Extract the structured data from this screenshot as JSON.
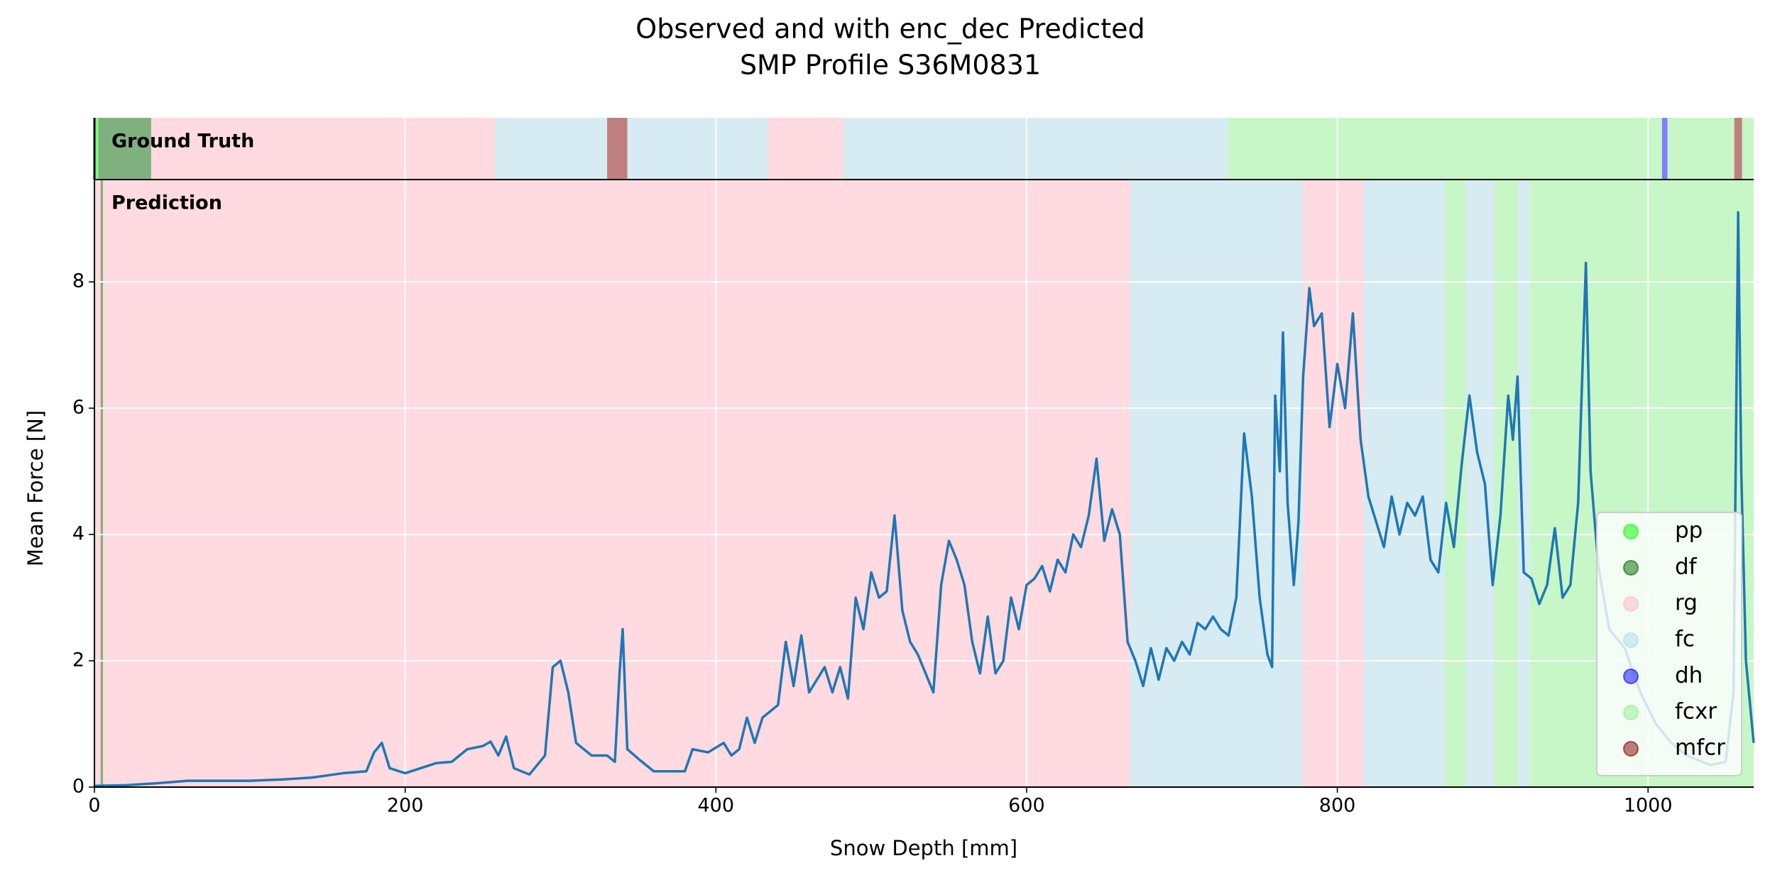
{
  "chart_data": {
    "type": "line",
    "title": "Observed and with enc_dec Predicted",
    "subtitle": "SMP Profile S36M0831",
    "xlabel": "Snow Depth [mm]",
    "ylabel": "Mean Force [N]",
    "xlim": [
      0,
      1068
    ],
    "ylim": [
      0,
      9.62
    ],
    "xticks": [
      0,
      200,
      400,
      600,
      800,
      1000
    ],
    "yticks": [
      0,
      2,
      4,
      6,
      8
    ],
    "grid": true,
    "legend": "lower right",
    "classes": [
      {
        "name": "pp",
        "color": "#00ff00"
      },
      {
        "name": "df",
        "color": "#006400"
      },
      {
        "name": "rg",
        "color": "#ffb6c1"
      },
      {
        "name": "fc",
        "color": "#add8e6"
      },
      {
        "name": "dh",
        "color": "#0000ff"
      },
      {
        "name": "fcxr",
        "color": "#90ee90"
      },
      {
        "name": "mfcr",
        "color": "#800000"
      }
    ],
    "panels": [
      {
        "label": "Ground Truth",
        "segments": [
          {
            "class": "pp",
            "start": 0,
            "end": 2.5
          },
          {
            "class": "df",
            "start": 2.5,
            "end": 36.5
          },
          {
            "class": "rg",
            "start": 36.5,
            "end": 258
          },
          {
            "class": "fc",
            "start": 258,
            "end": 330
          },
          {
            "class": "mfcr",
            "start": 330,
            "end": 343
          },
          {
            "class": "fc",
            "start": 343,
            "end": 433.5
          },
          {
            "class": "rg",
            "start": 433.5,
            "end": 482
          },
          {
            "class": "fc",
            "start": 482,
            "end": 729.5
          },
          {
            "class": "fcxr",
            "start": 729.5,
            "end": 1009
          },
          {
            "class": "dh",
            "start": 1009,
            "end": 1012.5
          },
          {
            "class": "fcxr",
            "start": 1012.5,
            "end": 1055.5
          },
          {
            "class": "mfcr",
            "start": 1055.5,
            "end": 1060.5
          },
          {
            "class": "fcxr",
            "start": 1060.5,
            "end": 1068
          }
        ]
      },
      {
        "label": "Prediction",
        "segments": [
          {
            "class": "rg",
            "start": 0,
            "end": 4
          },
          {
            "class": "df",
            "start": 4,
            "end": 5.5
          },
          {
            "class": "rg",
            "start": 5.5,
            "end": 666.7
          },
          {
            "class": "fc",
            "start": 666.7,
            "end": 777.8
          },
          {
            "class": "rg",
            "start": 777.8,
            "end": 817
          },
          {
            "class": "fc",
            "start": 817,
            "end": 869
          },
          {
            "class": "fcxr",
            "start": 869,
            "end": 883
          },
          {
            "class": "fc",
            "start": 883,
            "end": 901
          },
          {
            "class": "fcxr",
            "start": 901,
            "end": 916
          },
          {
            "class": "fc",
            "start": 916,
            "end": 924
          },
          {
            "class": "fcxr",
            "start": 924,
            "end": 1068
          }
        ]
      }
    ],
    "series": [
      {
        "color": "#1f77b4",
        "x": [
          0,
          20,
          40,
          60,
          80,
          100,
          120,
          140,
          160,
          175,
          180,
          185,
          190,
          200,
          210,
          220,
          230,
          240,
          250,
          255,
          260,
          265,
          270,
          280,
          290,
          295,
          300,
          305,
          310,
          320,
          330,
          335,
          338,
          340,
          343,
          350,
          360,
          370,
          380,
          385,
          395,
          405,
          410,
          415,
          420,
          425,
          430,
          435,
          440,
          445,
          450,
          455,
          460,
          465,
          470,
          475,
          480,
          485,
          490,
          495,
          500,
          505,
          510,
          515,
          520,
          525,
          530,
          540,
          545,
          550,
          555,
          560,
          565,
          570,
          575,
          580,
          585,
          590,
          595,
          600,
          605,
          610,
          615,
          620,
          625,
          630,
          635,
          640,
          645,
          650,
          655,
          660,
          665,
          670,
          675,
          680,
          685,
          690,
          695,
          700,
          705,
          710,
          715,
          720,
          725,
          730,
          735,
          740,
          745,
          750,
          755,
          758,
          760,
          763,
          765,
          768,
          772,
          775,
          778,
          782,
          785,
          790,
          795,
          800,
          805,
          810,
          815,
          820,
          825,
          830,
          835,
          840,
          845,
          850,
          855,
          860,
          865,
          870,
          875,
          880,
          885,
          890,
          895,
          900,
          905,
          910,
          913,
          916,
          920,
          925,
          930,
          935,
          940,
          945,
          950,
          955,
          960,
          963,
          968,
          975,
          985,
          995,
          1005,
          1015,
          1025,
          1040,
          1050,
          1055,
          1058,
          1060,
          1063,
          1068
        ],
        "values": [
          0.02,
          0.03,
          0.06,
          0.1,
          0.1,
          0.1,
          0.12,
          0.15,
          0.22,
          0.25,
          0.55,
          0.7,
          0.3,
          0.22,
          0.3,
          0.38,
          0.4,
          0.6,
          0.65,
          0.72,
          0.5,
          0.8,
          0.3,
          0.2,
          0.5,
          1.9,
          2.0,
          1.5,
          0.7,
          0.5,
          0.5,
          0.4,
          1.8,
          2.5,
          0.6,
          0.45,
          0.25,
          0.25,
          0.25,
          0.6,
          0.55,
          0.7,
          0.5,
          0.6,
          1.1,
          0.7,
          1.1,
          1.2,
          1.3,
          2.3,
          1.6,
          2.4,
          1.5,
          1.7,
          1.9,
          1.5,
          1.9,
          1.4,
          3.0,
          2.5,
          3.4,
          3.0,
          3.1,
          4.3,
          2.8,
          2.3,
          2.1,
          1.5,
          3.2,
          3.9,
          3.6,
          3.2,
          2.3,
          1.8,
          2.7,
          1.8,
          2.0,
          3.0,
          2.5,
          3.2,
          3.3,
          3.5,
          3.1,
          3.6,
          3.4,
          4.0,
          3.8,
          4.3,
          5.2,
          3.9,
          4.4,
          4.0,
          2.3,
          2.0,
          1.6,
          2.2,
          1.7,
          2.2,
          2.0,
          2.3,
          2.1,
          2.6,
          2.5,
          2.7,
          2.5,
          2.4,
          3.0,
          5.6,
          4.6,
          3.0,
          2.1,
          1.9,
          6.2,
          5.0,
          7.2,
          4.5,
          3.2,
          4.2,
          6.5,
          7.9,
          7.3,
          7.5,
          5.7,
          6.7,
          6.0,
          7.5,
          5.5,
          4.6,
          4.2,
          3.8,
          4.6,
          4.0,
          4.5,
          4.3,
          4.6,
          3.6,
          3.4,
          4.5,
          3.8,
          5.1,
          6.2,
          5.3,
          4.8,
          3.2,
          4.3,
          6.2,
          5.5,
          6.5,
          3.4,
          3.3,
          2.9,
          3.2,
          4.1,
          3.0,
          3.2,
          4.5,
          8.3,
          5.0,
          3.5,
          2.5,
          2.2,
          1.5,
          1.0,
          0.7,
          0.5,
          0.35,
          0.4,
          1.5,
          9.1,
          5.0,
          2.0,
          0.7
        ]
      }
    ]
  }
}
